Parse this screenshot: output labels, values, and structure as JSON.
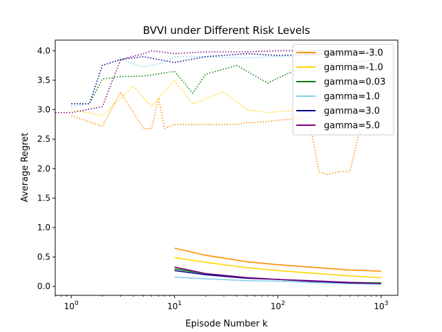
{
  "chart_data": {
    "type": "line",
    "title": "BVVI under Different Risk Levels",
    "xlabel": "Episode Number k",
    "ylabel": "Average Regret",
    "xscale": "log",
    "xlim": [
      0.7,
      1450
    ],
    "ylim": [
      -0.15,
      4.18
    ],
    "xticks": [
      {
        "value": 1,
        "base": "10",
        "exp": "0"
      },
      {
        "value": 10,
        "base": "10",
        "exp": "1"
      },
      {
        "value": 100,
        "base": "10",
        "exp": "2"
      },
      {
        "value": 1000,
        "base": "10",
        "exp": "3"
      }
    ],
    "yticks": [
      {
        "value": 0.0,
        "label": "0.0"
      },
      {
        "value": 0.5,
        "label": "0.5"
      },
      {
        "value": 1.0,
        "label": "1.0"
      },
      {
        "value": 1.5,
        "label": "1.5"
      },
      {
        "value": 2.0,
        "label": "2.0"
      },
      {
        "value": 2.5,
        "label": "2.5"
      },
      {
        "value": 3.0,
        "label": "3.0"
      },
      {
        "value": 3.5,
        "label": "3.5"
      },
      {
        "value": 4.0,
        "label": "4.0"
      }
    ],
    "grid": false,
    "legend_position": "top-right",
    "series": [
      {
        "name": "gamma=-3.0",
        "color": "#ff8c00",
        "bound": {
          "x": [
            10,
            20,
            50,
            100,
            200,
            500,
            1000
          ],
          "y": [
            0.65,
            0.53,
            0.42,
            0.37,
            0.33,
            0.28,
            0.26
          ]
        },
        "empirical": {
          "x": [
            1,
            2,
            3,
            5,
            6,
            7,
            8,
            10,
            15,
            30,
            40,
            50,
            60,
            80,
            150,
            200,
            250,
            300,
            400,
            500,
            600,
            1000
          ],
          "y": [
            2.9,
            2.72,
            3.3,
            2.68,
            2.68,
            3.2,
            2.68,
            2.75,
            2.75,
            2.75,
            2.75,
            2.78,
            2.78,
            2.8,
            2.85,
            2.88,
            1.95,
            1.9,
            1.95,
            1.95,
            2.55,
            3.8
          ]
        }
      },
      {
        "name": "gamma=-1.0",
        "color": "#ffd700",
        "bound": {
          "x": [
            10,
            20,
            50,
            100,
            200,
            500,
            1000
          ],
          "y": [
            0.49,
            0.41,
            0.32,
            0.27,
            0.23,
            0.18,
            0.15
          ]
        },
        "empirical": {
          "x": [
            1,
            2,
            4,
            6,
            8,
            10,
            15,
            30,
            50,
            80,
            120,
            200,
            300,
            500,
            1000
          ],
          "y": [
            3.0,
            2.9,
            3.4,
            3.05,
            3.3,
            3.5,
            3.1,
            3.3,
            3.0,
            2.95,
            2.98,
            3.0,
            3.1,
            3.2,
            3.5
          ]
        }
      },
      {
        "name": "gamma=0.03",
        "color": "#008000",
        "bound": {
          "x": [
            10,
            20,
            50,
            100,
            200,
            500,
            1000
          ],
          "y": [
            0.3,
            0.22,
            0.15,
            0.12,
            0.09,
            0.07,
            0.06
          ]
        },
        "empirical": {
          "x": [
            1,
            1.5,
            2,
            3,
            5,
            10,
            15,
            20,
            40,
            80,
            120,
            200,
            500,
            1000
          ],
          "y": [
            3.1,
            3.1,
            3.52,
            3.56,
            3.57,
            3.65,
            3.28,
            3.6,
            3.75,
            3.45,
            3.6,
            3.75,
            3.8,
            3.85
          ]
        }
      },
      {
        "name": "gamma=1.0",
        "color": "#87ceeb",
        "bound": {
          "x": [
            10,
            20,
            50,
            100,
            200,
            500,
            1000
          ],
          "y": [
            0.16,
            0.13,
            0.1,
            0.09,
            0.07,
            0.05,
            0.04
          ]
        },
        "empirical": {
          "x": [
            1,
            1.5,
            2,
            3,
            5,
            8,
            10,
            20,
            50,
            100,
            300,
            1000
          ],
          "y": [
            3.05,
            3.1,
            3.75,
            3.85,
            3.72,
            3.8,
            3.9,
            3.9,
            3.88,
            3.9,
            3.95,
            3.98
          ]
        }
      },
      {
        "name": "gamma=3.0",
        "color": "#00008b",
        "bound": {
          "x": [
            10,
            20,
            50,
            100,
            200,
            500,
            1000
          ],
          "y": [
            0.27,
            0.2,
            0.14,
            0.12,
            0.09,
            0.06,
            0.05
          ]
        },
        "empirical": {
          "x": [
            1,
            1.5,
            2,
            3,
            5,
            10,
            20,
            50,
            100,
            300,
            1000
          ],
          "y": [
            3.1,
            3.1,
            3.75,
            3.85,
            3.9,
            3.8,
            3.9,
            3.95,
            3.92,
            3.95,
            3.98
          ]
        }
      },
      {
        "name": "gamma=5.0",
        "color": "#800080",
        "bound": {
          "x": [
            10,
            20,
            50,
            100,
            200,
            500,
            1000
          ],
          "y": [
            0.33,
            0.22,
            0.15,
            0.12,
            0.1,
            0.07,
            0.05
          ]
        },
        "empirical": {
          "x": [
            0.7,
            1,
            2,
            3,
            5,
            6,
            10,
            20,
            50,
            100,
            300,
            1000
          ],
          "y": [
            2.95,
            2.95,
            3.05,
            3.85,
            3.95,
            4.0,
            3.95,
            3.98,
            3.98,
            4.0,
            4.0,
            4.0
          ]
        }
      }
    ]
  }
}
